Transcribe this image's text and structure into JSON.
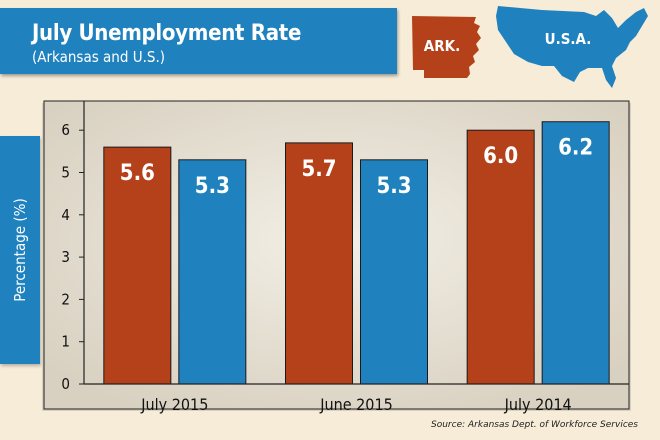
{
  "header": {
    "title": "July Unemployment Rate",
    "subtitle": "(Arkansas and U.S.)"
  },
  "maps": {
    "arkansas_label": "ARK.",
    "usa_label": "U.S.A.",
    "arkansas_color": "#b5411a",
    "usa_color": "#1f82bf"
  },
  "source": "Source: Arkansas Dept. of Workforce Services",
  "chart_data": {
    "type": "bar",
    "ylabel": "Percentage (%)",
    "xlabel": "",
    "ylim": [
      0,
      6.5
    ],
    "yticks": [
      0,
      1,
      2,
      3,
      4,
      5,
      6
    ],
    "grid": false,
    "categories": [
      "July 2015",
      "June 2015",
      "July 2014"
    ],
    "series": [
      {
        "name": "ARK.",
        "color": "#b5411a",
        "values": [
          5.6,
          5.7,
          6.0
        ],
        "labels": [
          "5.6",
          "5.7",
          "6.0"
        ]
      },
      {
        "name": "U.S.A.",
        "color": "#1f82bf",
        "values": [
          5.3,
          5.3,
          6.2
        ],
        "labels": [
          "5.3",
          "5.3",
          "6.2"
        ]
      }
    ]
  }
}
